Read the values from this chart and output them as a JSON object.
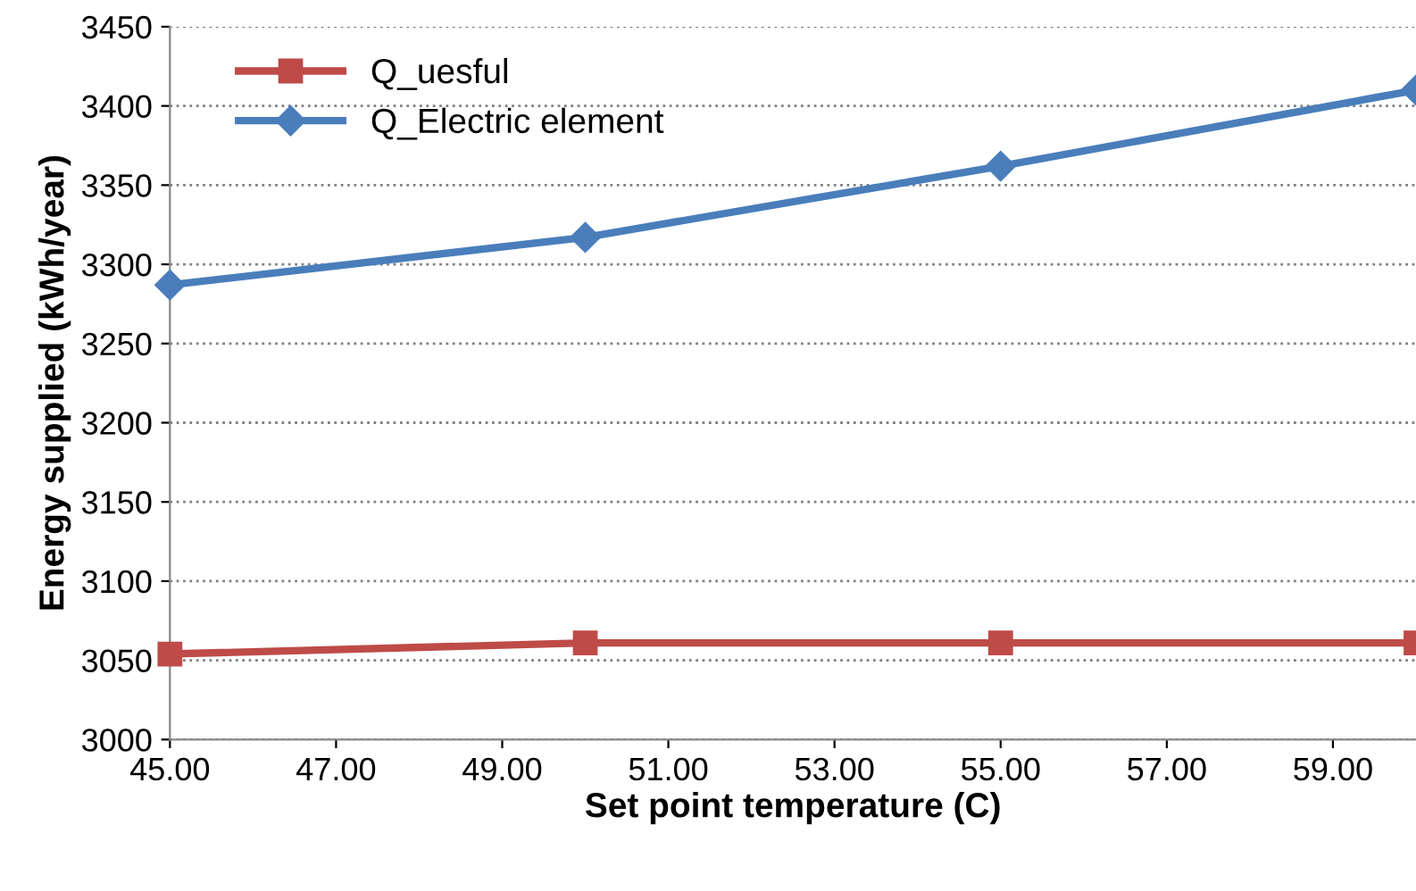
{
  "chart_data": {
    "type": "line",
    "xlabel": "Set point temperature (C)",
    "ylabel": "Energy supplied (kWh/year)",
    "x": [
      45,
      50,
      55,
      60
    ],
    "series": [
      {
        "name": "Q_uesful",
        "color": "#be4b48",
        "marker": "square",
        "values": [
          3054,
          3061,
          3061,
          3061
        ]
      },
      {
        "name": "Q_Electric element",
        "color": "#4a7ebb",
        "marker": "diamond",
        "values": [
          3287,
          3317,
          3362,
          3410
        ]
      }
    ],
    "xlim": [
      45,
      60
    ],
    "xticks": [
      {
        "value": 45,
        "label": "45.00"
      },
      {
        "value": 47,
        "label": "47.00"
      },
      {
        "value": 49,
        "label": "49.00"
      },
      {
        "value": 51,
        "label": "51.00"
      },
      {
        "value": 53,
        "label": "53.00"
      },
      {
        "value": 55,
        "label": "55.00"
      },
      {
        "value": 57,
        "label": "57.00"
      },
      {
        "value": 59,
        "label": "59.00"
      }
    ],
    "ylim": [
      3000,
      3450
    ],
    "yticks": [
      3000,
      3050,
      3100,
      3150,
      3200,
      3250,
      3300,
      3350,
      3400,
      3450
    ],
    "grid": "y",
    "legend": "top left",
    "line_style": "solid"
  }
}
